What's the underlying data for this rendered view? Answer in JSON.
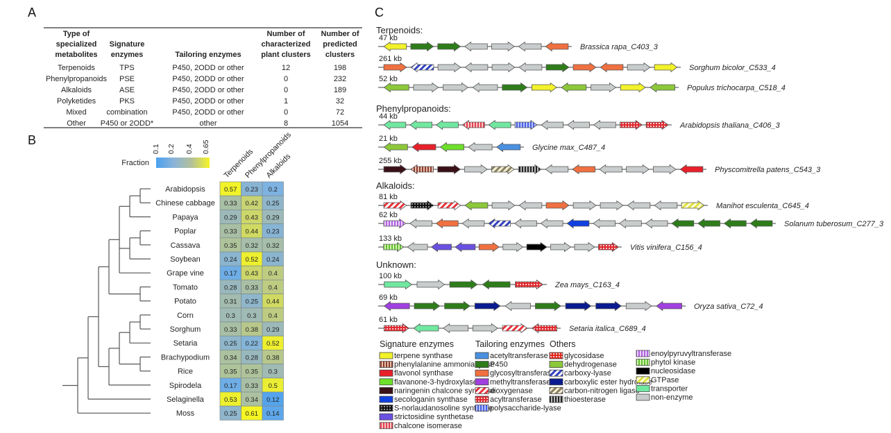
{
  "panels": {
    "a": "A",
    "b": "B",
    "c": "C"
  },
  "table": {
    "headers": [
      [
        "Type of",
        "specialized",
        "metabolites"
      ],
      [
        "",
        "Signature",
        "enzymes"
      ],
      [
        "",
        "",
        "Tailoring enzymes"
      ],
      [
        "Number of",
        "characterized",
        "plant clusters"
      ],
      [
        "Number of",
        "predicted",
        "clusters"
      ]
    ],
    "rows": [
      [
        "Terpenoids",
        "TPS",
        "P450, 2ODD or other",
        "12",
        "198"
      ],
      [
        "Phenylpropanoids",
        "PSE",
        "P450, 2ODD or other",
        "0",
        "232"
      ],
      [
        "Alkaloids",
        "ASE",
        "P450, 2ODD or other",
        "0",
        "189"
      ],
      [
        "Polyketides",
        "PKS",
        "P450, 2ODD or other",
        "1",
        "32"
      ],
      [
        "Mixed",
        "combination",
        "P450, 2ODD or other",
        "0",
        "72"
      ],
      [
        "Other",
        "P450 or 2ODD*",
        "other",
        "8",
        "1054"
      ]
    ]
  },
  "heatmap": {
    "colorbar_label": "Fraction",
    "colorbar_ticks": [
      "0.1",
      "0.2",
      "0.4",
      "0.65"
    ],
    "colorbar_colors": [
      "#4aa0f0",
      "#8ab4d8",
      "#b4c098",
      "#f5f525"
    ],
    "columns": [
      "Terpenoids",
      "Phenylpropanoids",
      "Alkaloids"
    ],
    "species": [
      "Arabidopsis",
      "Chinese cabbage",
      "Papaya",
      "Poplar",
      "Cassava",
      "Soybean",
      "Grape vine",
      "Tomato",
      "Potato",
      "Corn",
      "Sorghum",
      "Setaria",
      "Brachypodium",
      "Rice",
      "Spirodela",
      "Selaginella",
      "Moss"
    ],
    "values": [
      [
        0.57,
        0.23,
        0.2
      ],
      [
        0.33,
        0.42,
        0.25
      ],
      [
        0.29,
        0.43,
        0.29
      ],
      [
        0.33,
        0.44,
        0.23
      ],
      [
        0.35,
        0.32,
        0.32
      ],
      [
        0.24,
        0.52,
        0.24
      ],
      [
        0.17,
        0.43,
        0.4
      ],
      [
        0.28,
        0.33,
        0.4
      ],
      [
        0.31,
        0.25,
        0.44
      ],
      [
        0.3,
        0.3,
        0.4
      ],
      [
        0.33,
        0.38,
        0.29
      ],
      [
        0.25,
        0.22,
        0.52
      ],
      [
        0.34,
        0.28,
        0.38
      ],
      [
        0.35,
        0.35,
        0.3
      ],
      [
        0.17,
        0.33,
        0.5
      ],
      [
        0.53,
        0.34,
        0.12
      ],
      [
        0.25,
        0.61,
        0.14
      ]
    ],
    "tree": [
      [
        [
          [
            [
              [
                [
                  "Arabidopsis",
                  "Chinese cabbage"
                ],
                "Papaya"
              ],
              [
                [
                  "Poplar",
                  "Cassava"
                ],
                "Soybean"
              ],
              "Grape vine"
            ],
            [
              "Tomato",
              "Potato"
            ]
          ],
          [
            [
              [
                [
                  "Corn",
                  "Sorghum"
                ],
                "Setaria"
              ],
              [
                "Brachypodium",
                "Rice"
              ]
            ],
            "Spirodela"
          ]
        ],
        "Selaginella"
      ],
      "Moss"
    ]
  },
  "clusters": {
    "groups": [
      {
        "title": "Terpenoids:",
        "rows": [
          {
            "size": "47 kb",
            "name": "Brassica rapa_C403_3",
            "genes": [
              [
                "terpene",
                "L"
              ],
              [
                "p450",
                "R"
              ],
              [
                "p450",
                "R"
              ],
              [
                "none",
                "L"
              ],
              [
                "none",
                "R"
              ],
              [
                "none",
                "L"
              ],
              [
                "glyco",
                "L"
              ]
            ]
          },
          {
            "size": "261 kb",
            "name": "Sorghum bicolor_C533_4",
            "genes": [
              [
                "glyco",
                "R"
              ],
              [
                "carboxy",
                "L"
              ],
              [
                "none",
                "R"
              ],
              [
                "none",
                "L"
              ],
              [
                "none",
                "R"
              ],
              [
                "none",
                "L"
              ],
              [
                "p450",
                "R"
              ],
              [
                "glyco",
                "R"
              ],
              [
                "glyco",
                "L"
              ],
              [
                "none",
                "R"
              ],
              [
                "terpene",
                "R"
              ]
            ]
          },
          {
            "size": "52 kb",
            "name": "Populus trichocarpa_C518_4",
            "genes": [
              [
                "dehyd",
                "L"
              ],
              [
                "none",
                "R"
              ],
              [
                "none",
                "R"
              ],
              [
                "none",
                "L"
              ],
              [
                "p450",
                "R"
              ],
              [
                "terpene",
                "R"
              ],
              [
                "dehyd",
                "L"
              ],
              [
                "none",
                "R"
              ],
              [
                "terpene",
                "R"
              ],
              [
                "dehyd",
                "L"
              ]
            ]
          }
        ]
      },
      {
        "title": "Phenylpropanoids:",
        "rows": [
          {
            "size": "44 kb",
            "name": "Arabidopsis thaliana_C406_3",
            "genes": [
              [
                "transp",
                "L"
              ],
              [
                "transp",
                "L"
              ],
              [
                "transp",
                "L"
              ],
              [
                "chalcone",
                "L"
              ],
              [
                "transp",
                "L"
              ],
              [
                "polysac",
                "R"
              ],
              [
                "none",
                "L"
              ],
              [
                "none",
                "L"
              ],
              [
                "none",
                "L"
              ],
              [
                "acyl",
                "R"
              ],
              [
                "acyl",
                "R"
              ]
            ]
          },
          {
            "size": "21 kb",
            "name": "Glycine max_C487_4",
            "genes": [
              [
                "dehyd",
                "L"
              ],
              [
                "flavonol",
                "L"
              ],
              [
                "flavanone",
                "L"
              ],
              [
                "none",
                "L"
              ],
              [
                "acetyl",
                "L"
              ]
            ]
          },
          {
            "size": "255 kb",
            "name": "Physcomitrella patens_C543_3",
            "genes": [
              [
                "naringenin",
                "R"
              ],
              [
                "pal",
                "L"
              ],
              [
                "naringenin",
                "R"
              ],
              [
                "none",
                "R"
              ],
              [
                "cnligase",
                "R"
              ],
              [
                "thio",
                "R"
              ],
              [
                "none",
                "L"
              ],
              [
                "glyco",
                "L"
              ],
              [
                "none",
                "L"
              ],
              [
                "none",
                "R"
              ],
              [
                "none",
                "R"
              ],
              [
                "flavonol",
                "L"
              ]
            ]
          }
        ]
      },
      {
        "title": "Alkaloids:",
        "rows": [
          {
            "size": "81 kb",
            "name": "Manihot esculenta_C645_4",
            "genes": [
              [
                "dioxy",
                "R"
              ],
              [
                "snor",
                "R"
              ],
              [
                "dioxy",
                "R"
              ],
              [
                "dehyd",
                "L"
              ],
              [
                "none",
                "R"
              ],
              [
                "none",
                "L"
              ],
              [
                "glyco",
                "R"
              ],
              [
                "none",
                "R"
              ],
              [
                "none",
                "R"
              ],
              [
                "none",
                "L"
              ],
              [
                "none",
                "L"
              ],
              [
                "gtpase",
                "R"
              ]
            ]
          },
          {
            "size": "62 kb",
            "name": "Solanum tuberosum_C277_3",
            "genes": [
              [
                "enoyl",
                "R"
              ],
              [
                "none",
                "L"
              ],
              [
                "glyco",
                "L"
              ],
              [
                "none",
                "L"
              ],
              [
                "carboxy",
                "L"
              ],
              [
                "none",
                "L"
              ],
              [
                "none",
                "L"
              ],
              [
                "seco",
                "L"
              ],
              [
                "none",
                "L"
              ],
              [
                "none",
                "L"
              ],
              [
                "none",
                "L"
              ],
              [
                "p450",
                "L"
              ],
              [
                "p450",
                "L"
              ],
              [
                "p450",
                "L"
              ],
              [
                "p450",
                "L"
              ]
            ]
          },
          {
            "size": "133 kb",
            "name": "Vitis vinifera_C156_4",
            "genes": [
              [
                "phytol",
                "R"
              ],
              [
                "none",
                "L"
              ],
              [
                "stricto",
                "L"
              ],
              [
                "stricto",
                "L"
              ],
              [
                "glyco",
                "R"
              ],
              [
                "none",
                "R"
              ],
              [
                "nucleo",
                "R"
              ],
              [
                "none",
                "R"
              ],
              [
                "none",
                "R"
              ],
              [
                "acyl",
                "R"
              ]
            ]
          }
        ]
      },
      {
        "title": "Unknown:",
        "rows": [
          {
            "size": "100 kb",
            "name": "Zea mays_C163_4",
            "genes": [
              [
                "transp",
                "R"
              ],
              [
                "none",
                "R"
              ],
              [
                "p450",
                "R"
              ],
              [
                "p450",
                "L"
              ],
              [
                "acyl",
                "R"
              ]
            ]
          },
          {
            "size": "69 kb",
            "name": "Oryza sativa_C72_4",
            "genes": [
              [
                "methyl",
                "L"
              ],
              [
                "p450",
                "R"
              ],
              [
                "p450",
                "R"
              ],
              [
                "ester",
                "R"
              ],
              [
                "none",
                "L"
              ],
              [
                "p450",
                "R"
              ],
              [
                "ester",
                "R"
              ],
              [
                "ester",
                "R"
              ],
              [
                "none",
                "R"
              ],
              [
                "methyl",
                "L"
              ]
            ]
          },
          {
            "size": "61 kb",
            "name": "Setaria italica_C689_4",
            "genes": [
              [
                "acyl",
                "R"
              ],
              [
                "transp",
                "L"
              ],
              [
                "none",
                "L"
              ],
              [
                "none",
                "R"
              ],
              [
                "dioxy",
                "R"
              ],
              [
                "acyl",
                "L"
              ]
            ]
          }
        ]
      }
    ]
  },
  "legend": {
    "columns": [
      {
        "title": "Signature enzymes",
        "items": [
          {
            "key": "terpene",
            "label": "terpene synthase",
            "color": "#f2f22a"
          },
          {
            "key": "pal",
            "label": "phenylalanine ammonia lyase",
            "color": "#8b3a2a"
          },
          {
            "key": "flavonol",
            "label": "flavonol synthase",
            "color": "#e8202a"
          },
          {
            "key": "flavanone",
            "label": "flavanone-3-hydroxylase",
            "color": "#6ee02a"
          },
          {
            "key": "naringenin",
            "label": "naringenin chalcone synthase",
            "color": "#3a1018"
          },
          {
            "key": "seco",
            "label": "secologanin synthase",
            "color": "#1040e0"
          },
          {
            "key": "snor",
            "label": "S-norlaudanosoline synthase",
            "color": "#111111"
          },
          {
            "key": "stricto",
            "label": "strictosidine synthetase",
            "color": "#6a50e0"
          },
          {
            "key": "chalcone",
            "label": "chalcone isomerase",
            "color": "#e04050"
          }
        ]
      },
      {
        "title": "Tailoring enzymes",
        "items": [
          {
            "key": "acetyl",
            "label": "acetyltransferase",
            "color": "#4a90e0"
          },
          {
            "key": "p450",
            "label": "P450",
            "color": "#2e7d1a"
          },
          {
            "key": "glyco",
            "label": "glycosyltransferase",
            "color": "#f07040"
          },
          {
            "key": "methyl",
            "label": "methyltransferase",
            "color": "#a040e0"
          },
          {
            "key": "dioxy",
            "label": "dioxygenase",
            "color": "#e8303a"
          },
          {
            "key": "acyl",
            "label": "acyltransferase",
            "color": "#e02a30"
          },
          {
            "key": "polysac",
            "label": "polysaccharide-lyase",
            "color": "#4a60e0"
          }
        ]
      },
      {
        "title": "Others",
        "items": [
          {
            "key": "glycosid",
            "label": "glycosidase",
            "color": "#e02a20"
          },
          {
            "key": "dehyd",
            "label": "dehydrogenase",
            "color": "#8cc83a"
          },
          {
            "key": "carboxy",
            "label": "carboxy-lyase",
            "color": "#3040c0"
          },
          {
            "key": "ester",
            "label": "carboxylic ester hydrolase",
            "color": "#0a1a90"
          },
          {
            "key": "cnligase",
            "label": "carbon-nitrogen ligase",
            "color": "#8a8060"
          },
          {
            "key": "thio",
            "label": "thioesterase",
            "color": "#222222"
          }
        ]
      },
      {
        "title": "",
        "items": [
          {
            "key": "enoyl",
            "label": "enoylpyruvyltransferase",
            "color": "#b060e0"
          },
          {
            "key": "phytol",
            "label": "phytol kinase",
            "color": "#60c030"
          },
          {
            "key": "nucleo",
            "label": "nucleosidase",
            "color": "#000000"
          },
          {
            "key": "gtpase",
            "label": "GTPase",
            "color": "#e0e040"
          },
          {
            "key": "transp",
            "label": "transporter",
            "color": "#70e8a0"
          },
          {
            "key": "none",
            "label": "non-enzyme",
            "color": "#c8cccc"
          }
        ]
      }
    ]
  }
}
